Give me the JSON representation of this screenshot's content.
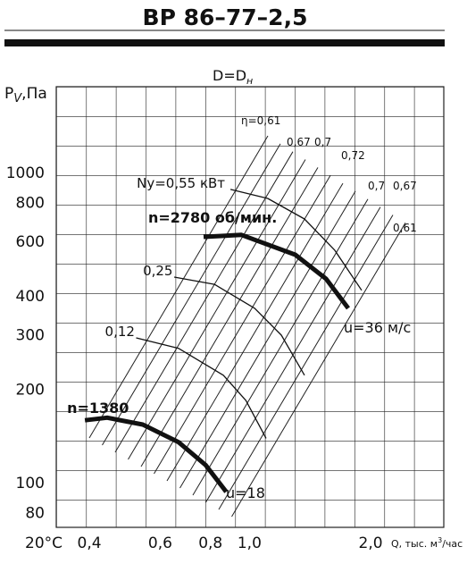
{
  "title": "ВР 86–77–2,5",
  "chart_data": {
    "type": "line",
    "subtitle_parts": [
      "D=D",
      "н"
    ],
    "ylabel_parts": [
      "P",
      "V",
      ",Па"
    ],
    "xlabel_parts": [
      "Q, тыс. м",
      "3",
      "/час"
    ],
    "temperature": "20°С",
    "log_x": true,
    "log_y": true,
    "xlim": [
      0.331,
      3.04
    ],
    "ylim": [
      71.8,
      1890
    ],
    "xticks": [
      {
        "value": 0.4,
        "label": "0,4"
      },
      {
        "value": 0.6,
        "label": "0,6"
      },
      {
        "value": 0.8,
        "label": "0,8"
      },
      {
        "value": 1,
        "label": "1,0"
      },
      {
        "value": 2,
        "label": "2,0"
      }
    ],
    "yticks": [
      80,
      100,
      200,
      300,
      400,
      600,
      800,
      1000
    ],
    "series": [
      {
        "name": "n=2780 об/мин.",
        "color": "#111111",
        "style": "thick",
        "x": [
          0.769,
          0.955,
          1.3,
          1.55,
          1.76
        ],
        "values": [
          620,
          629,
          543,
          454,
          365
        ]
      },
      {
        "name": "n=1380",
        "color": "#111111",
        "style": "thick",
        "x": [
          0.39,
          0.443,
          0.543,
          0.667,
          0.778,
          0.875
        ],
        "values": [
          159,
          162,
          154,
          135,
          114,
          93.5
        ]
      },
      {
        "name": "Ny=0,55 кВт",
        "color": "#111111",
        "style": "thin",
        "x": [
          0.897,
          1.11,
          1.37,
          1.63,
          1.9
        ],
        "values": [
          882,
          825,
          708,
          561,
          417
        ]
      },
      {
        "name": "0,25",
        "color": "#111111",
        "style": "thin",
        "x": [
          0.65,
          0.818,
          1.03,
          1.2,
          1.37
        ],
        "values": [
          460,
          436,
          365,
          299,
          222
        ]
      },
      {
        "name": "0,12",
        "color": "#111111",
        "style": "thin",
        "x": [
          0.523,
          0.667,
          0.861,
          0.98,
          1.1
        ],
        "values": [
          293,
          271,
          222,
          184,
          139
        ]
      }
    ],
    "annotations": [
      "η=0,61",
      "0,67",
      "0,7",
      "0,72",
      "0,7",
      "0,67",
      "0,61",
      "u=36 м/с",
      "u=18"
    ]
  }
}
